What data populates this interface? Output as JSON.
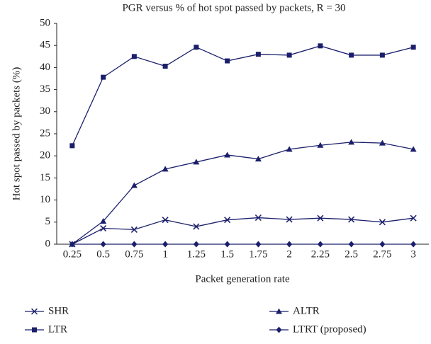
{
  "chart_data": {
    "type": "line",
    "title": "PGR versus % of hot spot passed by packets, R = 30",
    "x_label": "Packet generation rate",
    "y_label": "Hot spot passed by packets (%)",
    "categories": [
      "0.25",
      "0.5",
      "0.75",
      "1",
      "1.25",
      "1.5",
      "1.75",
      "2",
      "2.25",
      "2.5",
      "2.75",
      "3"
    ],
    "series": [
      {
        "name": "SHR",
        "color": "#1b1f6b",
        "marker": "x",
        "values": [
          0,
          3.6,
          3.3,
          5.5,
          4,
          5.5,
          6,
          5.6,
          5.9,
          5.6,
          5,
          5.9
        ]
      },
      {
        "name": "LTR",
        "color": "#1b1f6b",
        "marker": "square",
        "values": [
          22.3,
          37.8,
          42.5,
          40.3,
          44.6,
          41.5,
          43,
          42.8,
          44.9,
          42.8,
          42.8,
          44.6
        ]
      },
      {
        "name": "ALTR",
        "color": "#1b1f6b",
        "marker": "triangle",
        "values": [
          0,
          5.2,
          13.3,
          17,
          18.6,
          20.2,
          19.3,
          21.5,
          22.4,
          23.1,
          22.9,
          21.5
        ]
      },
      {
        "name": "LTRT (proposed)",
        "color": "#1b1f6b",
        "marker": "diamond",
        "values": [
          0,
          0,
          0,
          0,
          0,
          0,
          0,
          0,
          0,
          0,
          0,
          0
        ]
      }
    ],
    "ylim": [
      0,
      50
    ],
    "yticks": [
      0,
      5,
      10,
      15,
      20,
      25,
      30,
      35,
      40,
      45,
      50
    ],
    "grid": false,
    "legend": "bottom"
  }
}
